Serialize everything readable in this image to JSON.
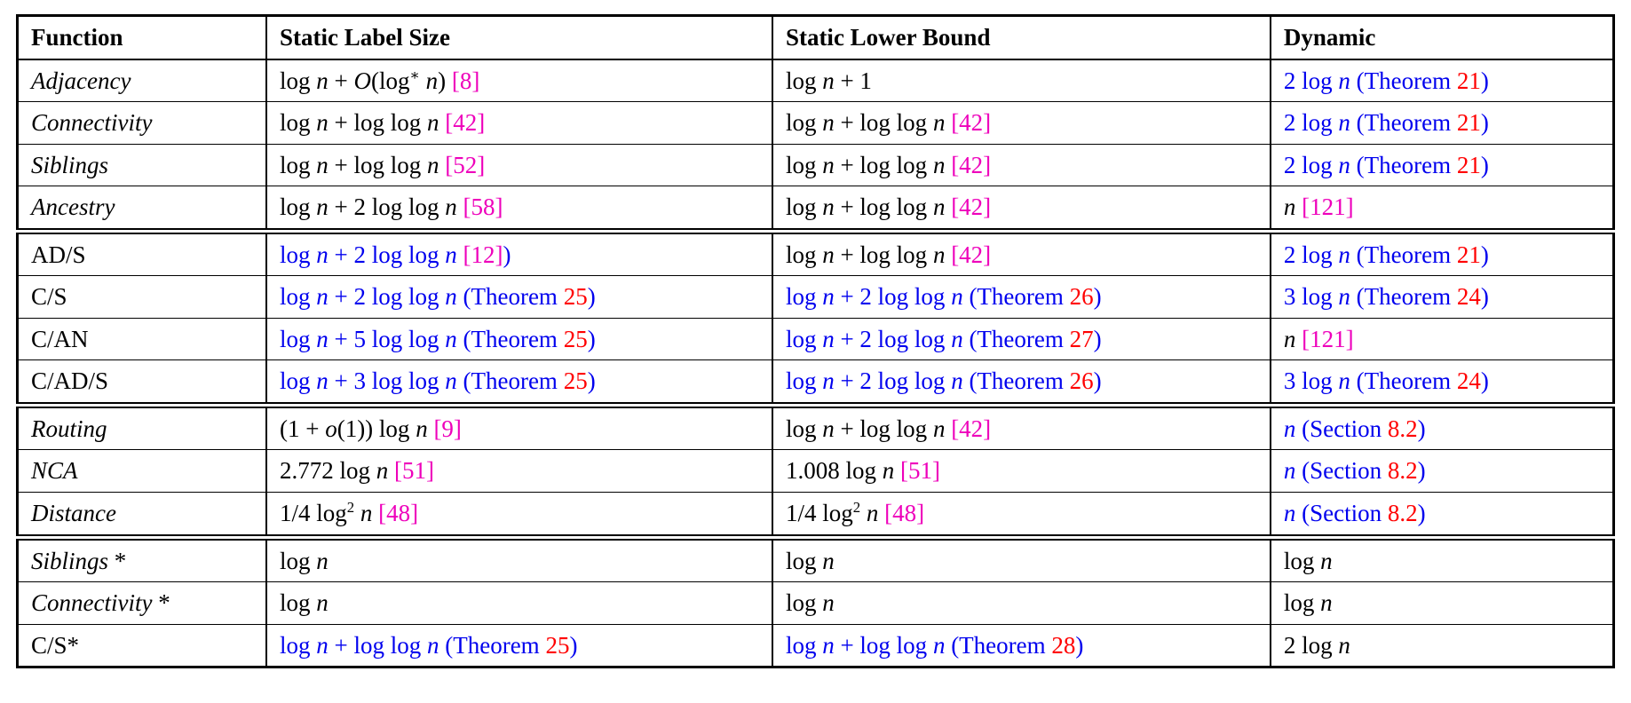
{
  "colors": {
    "blue": "#0000EE",
    "cite": "#EE00BB",
    "ref": "#FF0000",
    "text": "#000000"
  },
  "table": {
    "columns": [
      "Function",
      "Static Label Size",
      "Static Lower Bound",
      "Dynamic"
    ],
    "groups": [
      {
        "rows": [
          {
            "cells": [
              [
                {
                  "t": "*Adjacency*"
                }
              ],
              [
                {
                  "t": "log *n* + *O*(log^{∗} *n*) "
                },
                {
                  "t": "[8]",
                  "c": "m"
                }
              ],
              [
                {
                  "t": "log *n* + 1"
                }
              ],
              [
                {
                  "t": "2 log *n* (Theorem ",
                  "c": "b"
                },
                {
                  "t": "21",
                  "c": "r"
                },
                {
                  "t": ")",
                  "c": "b"
                }
              ]
            ]
          },
          {
            "cells": [
              [
                {
                  "t": "*Connectivity*"
                }
              ],
              [
                {
                  "t": "log *n* + log log *n* "
                },
                {
                  "t": "[42]",
                  "c": "m"
                }
              ],
              [
                {
                  "t": "log *n* + log log *n* "
                },
                {
                  "t": "[42]",
                  "c": "m"
                }
              ],
              [
                {
                  "t": "2 log *n* (Theorem ",
                  "c": "b"
                },
                {
                  "t": "21",
                  "c": "r"
                },
                {
                  "t": ")",
                  "c": "b"
                }
              ]
            ]
          },
          {
            "cells": [
              [
                {
                  "t": "*Siblings*"
                }
              ],
              [
                {
                  "t": "log *n* + log log *n* "
                },
                {
                  "t": "[52]",
                  "c": "m"
                }
              ],
              [
                {
                  "t": "log *n* + log log *n* "
                },
                {
                  "t": "[42]",
                  "c": "m"
                }
              ],
              [
                {
                  "t": "2 log *n* (Theorem ",
                  "c": "b"
                },
                {
                  "t": "21",
                  "c": "r"
                },
                {
                  "t": ")",
                  "c": "b"
                }
              ]
            ]
          },
          {
            "cells": [
              [
                {
                  "t": "*Ancestry*"
                }
              ],
              [
                {
                  "t": "log *n* + 2 log log *n* "
                },
                {
                  "t": "[58]",
                  "c": "m"
                }
              ],
              [
                {
                  "t": "log *n* + log log *n* "
                },
                {
                  "t": "[42]",
                  "c": "m"
                }
              ],
              [
                {
                  "t": "*n* "
                },
                {
                  "t": "[121]",
                  "c": "m"
                }
              ]
            ]
          }
        ]
      },
      {
        "rows": [
          {
            "cells": [
              [
                {
                  "t": "AD/S"
                }
              ],
              [
                {
                  "t": "log *n* + 2 log log *n* ",
                  "c": "b"
                },
                {
                  "t": "[12]",
                  "c": "m"
                },
                {
                  "t": ")",
                  "c": "b"
                }
              ],
              [
                {
                  "t": "log *n* + log log *n* "
                },
                {
                  "t": "[42]",
                  "c": "m"
                }
              ],
              [
                {
                  "t": "2 log *n* (Theorem ",
                  "c": "b"
                },
                {
                  "t": "21",
                  "c": "r"
                },
                {
                  "t": ")",
                  "c": "b"
                }
              ]
            ]
          },
          {
            "cells": [
              [
                {
                  "t": "C/S"
                }
              ],
              [
                {
                  "t": "log *n* + 2 log log *n* (Theorem ",
                  "c": "b"
                },
                {
                  "t": "25",
                  "c": "r"
                },
                {
                  "t": ")",
                  "c": "b"
                }
              ],
              [
                {
                  "t": "log *n* + 2 log log *n* (Theorem ",
                  "c": "b"
                },
                {
                  "t": "26",
                  "c": "r"
                },
                {
                  "t": ")",
                  "c": "b"
                }
              ],
              [
                {
                  "t": "3 log *n* (Theorem ",
                  "c": "b"
                },
                {
                  "t": "24",
                  "c": "r"
                },
                {
                  "t": ")",
                  "c": "b"
                }
              ]
            ]
          },
          {
            "cells": [
              [
                {
                  "t": "C/AN"
                }
              ],
              [
                {
                  "t": "log *n* + 5 log log *n* (Theorem ",
                  "c": "b"
                },
                {
                  "t": "25",
                  "c": "r"
                },
                {
                  "t": ")",
                  "c": "b"
                }
              ],
              [
                {
                  "t": "log *n* + 2 log log *n* (Theorem ",
                  "c": "b"
                },
                {
                  "t": "27",
                  "c": "r"
                },
                {
                  "t": ")",
                  "c": "b"
                }
              ],
              [
                {
                  "t": "*n* "
                },
                {
                  "t": "[121]",
                  "c": "m"
                }
              ]
            ]
          },
          {
            "cells": [
              [
                {
                  "t": "C/AD/S"
                }
              ],
              [
                {
                  "t": "log *n* + 3 log log *n* (Theorem ",
                  "c": "b"
                },
                {
                  "t": "25",
                  "c": "r"
                },
                {
                  "t": ")",
                  "c": "b"
                }
              ],
              [
                {
                  "t": "log *n* + 2 log log *n* (Theorem ",
                  "c": "b"
                },
                {
                  "t": "26",
                  "c": "r"
                },
                {
                  "t": ")",
                  "c": "b"
                }
              ],
              [
                {
                  "t": "3 log *n* (Theorem ",
                  "c": "b"
                },
                {
                  "t": "24",
                  "c": "r"
                },
                {
                  "t": ")",
                  "c": "b"
                }
              ]
            ]
          }
        ]
      },
      {
        "rows": [
          {
            "cells": [
              [
                {
                  "t": "*Routing*"
                }
              ],
              [
                {
                  "t": "(1 + *o*(1)) log *n* "
                },
                {
                  "t": "[9]",
                  "c": "m"
                }
              ],
              [
                {
                  "t": "log *n* + log log *n* "
                },
                {
                  "t": "[42]",
                  "c": "m"
                }
              ],
              [
                {
                  "t": "*n* (Section ",
                  "c": "b"
                },
                {
                  "t": "8.2",
                  "c": "r"
                },
                {
                  "t": ")",
                  "c": "b"
                }
              ]
            ]
          },
          {
            "cells": [
              [
                {
                  "t": "*NCA*"
                }
              ],
              [
                {
                  "t": "2.772 log *n* "
                },
                {
                  "t": "[51]",
                  "c": "m"
                }
              ],
              [
                {
                  "t": "1.008 log *n* "
                },
                {
                  "t": "[51]",
                  "c": "m"
                }
              ],
              [
                {
                  "t": "*n* (Section ",
                  "c": "b"
                },
                {
                  "t": "8.2",
                  "c": "r"
                },
                {
                  "t": ")",
                  "c": "b"
                }
              ]
            ]
          },
          {
            "cells": [
              [
                {
                  "t": "*Distance*"
                }
              ],
              [
                {
                  "t": "1/4 log^{2} *n* "
                },
                {
                  "t": "[48]",
                  "c": "m"
                }
              ],
              [
                {
                  "t": "1/4 log^{2} *n* "
                },
                {
                  "t": "[48]",
                  "c": "m"
                }
              ],
              [
                {
                  "t": "*n* (Section ",
                  "c": "b"
                },
                {
                  "t": "8.2",
                  "c": "r"
                },
                {
                  "t": ")",
                  "c": "b"
                }
              ]
            ]
          }
        ]
      },
      {
        "rows": [
          {
            "cells": [
              [
                {
                  "t": "*Siblings* *"
                }
              ],
              [
                {
                  "t": "log *n*"
                }
              ],
              [
                {
                  "t": "log *n*"
                }
              ],
              [
                {
                  "t": "log *n*"
                }
              ]
            ]
          },
          {
            "cells": [
              [
                {
                  "t": "*Connectivity* *"
                }
              ],
              [
                {
                  "t": "log *n*"
                }
              ],
              [
                {
                  "t": "log *n*"
                }
              ],
              [
                {
                  "t": "log *n*"
                }
              ]
            ]
          },
          {
            "cells": [
              [
                {
                  "t": "C/S*"
                }
              ],
              [
                {
                  "t": "log *n* + log log *n* (Theorem ",
                  "c": "b"
                },
                {
                  "t": "25",
                  "c": "r"
                },
                {
                  "t": ")",
                  "c": "b"
                }
              ],
              [
                {
                  "t": "log *n* + log log *n* (Theorem ",
                  "c": "b"
                },
                {
                  "t": "28",
                  "c": "r"
                },
                {
                  "t": ")",
                  "c": "b"
                }
              ],
              [
                {
                  "t": "2 log *n*"
                }
              ]
            ]
          }
        ]
      }
    ]
  }
}
